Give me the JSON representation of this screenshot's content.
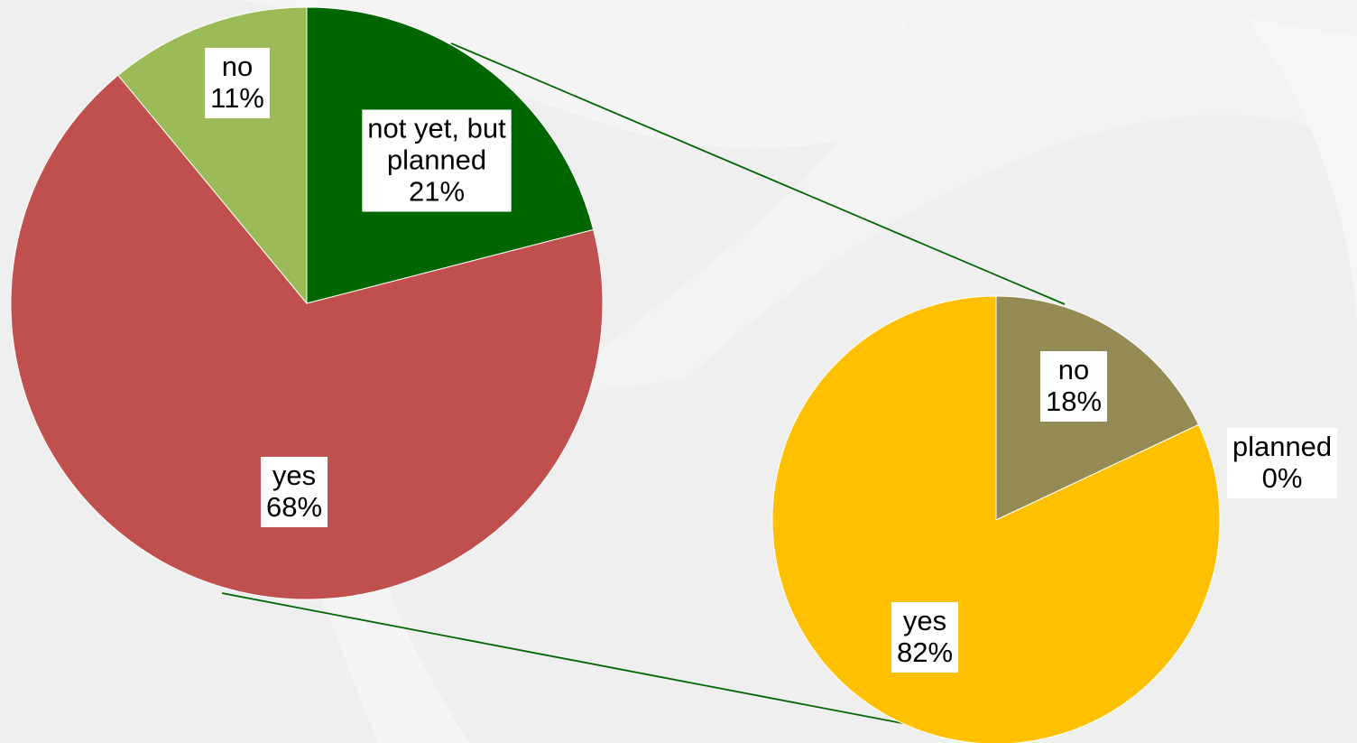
{
  "chart_data": [
    {
      "type": "pie",
      "slices": [
        {
          "label": "not yet, but planned",
          "display_lines": [
            "not yet, but",
            "planned"
          ],
          "value": 21,
          "value_label": "21%",
          "color": "#006600"
        },
        {
          "label": "yes",
          "display_lines": [
            "yes"
          ],
          "value": 68,
          "value_label": "68%",
          "color": "#c0504d"
        },
        {
          "label": "no",
          "display_lines": [
            "no"
          ],
          "value": 11,
          "value_label": "11%",
          "color": "#9bbb59"
        }
      ]
    },
    {
      "type": "pie",
      "slices": [
        {
          "label": "no",
          "display_lines": [
            "no"
          ],
          "value": 18,
          "value_label": "18%",
          "color": "#948a54"
        },
        {
          "label": "planned",
          "display_lines": [
            "planned"
          ],
          "value": 0,
          "value_label": "0%",
          "color": "#ffc000"
        },
        {
          "label": "yes",
          "display_lines": [
            "yes"
          ],
          "value": 82,
          "value_label": "82%",
          "color": "#ffc000"
        }
      ]
    }
  ],
  "connector_color": "#006600"
}
